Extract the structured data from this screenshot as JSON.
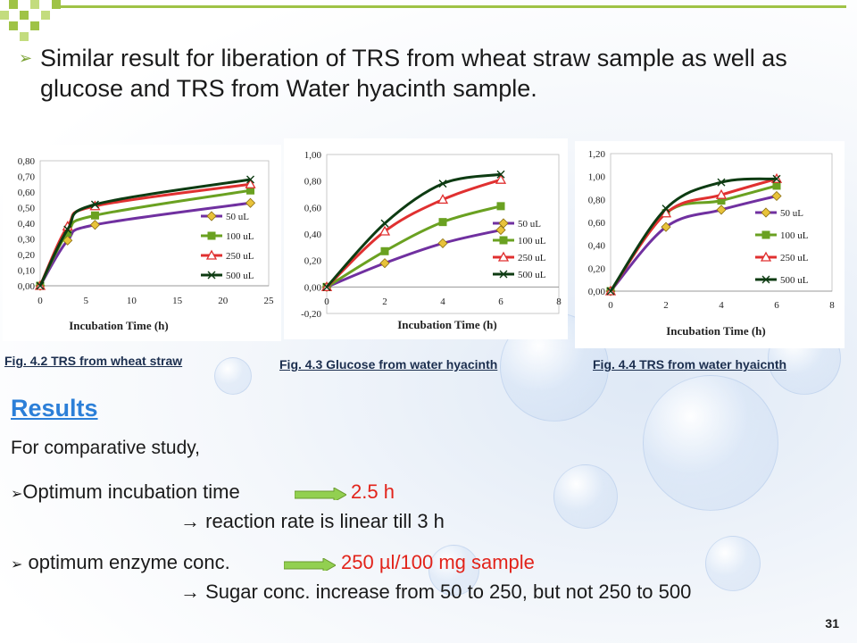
{
  "slide": {
    "title": "Similar result for liberation of TRS from wheat straw sample as well as glucose and TRS from Water hyacinth sample.",
    "captions": [
      "Fig. 4.2 TRS from wheat straw",
      "Fig. 4.3 Glucose from water hyacinth",
      "Fig. 4.4 TRS from water hyaicnth"
    ],
    "results_heading": "Results",
    "intro": "For comparative study,",
    "point1_label": "Optimum incubation time",
    "point1_value": "2.5 h",
    "point1_note": "→ reaction rate is linear till 3 h",
    "point2_label": "optimum enzyme conc.",
    "point2_value": "250 µl/100 mg sample",
    "point2_note": "→ Sugar conc. increase from 50 to 250, but not 250 to 500",
    "page_number": "31",
    "colors": {
      "accent": "#9fc346",
      "heading": "#2c7fd8",
      "highlight": "#e2231a",
      "arrow": "#92d050"
    }
  },
  "chart_data": [
    {
      "type": "line",
      "xlabel": "Incubation Time (h)",
      "ylabel": "",
      "xlim": [
        0,
        25
      ],
      "ylim": [
        0,
        0.8
      ],
      "xticks": [
        "0",
        "5",
        "10",
        "15",
        "20",
        "25"
      ],
      "yticks": [
        "0,00",
        "0,10",
        "0,20",
        "0,30",
        "0,40",
        "0,50",
        "0,60",
        "0,70",
        "0,80"
      ],
      "x": [
        0,
        3,
        6,
        23
      ],
      "series": [
        {
          "name": "50 uL",
          "values": [
            0,
            0.29,
            0.39,
            0.53
          ],
          "color": "#7030a0",
          "marker": "diamond"
        },
        {
          "name": "100 uL",
          "values": [
            0,
            0.34,
            0.45,
            0.61
          ],
          "color": "#6aa121",
          "marker": "square"
        },
        {
          "name": "250 uL",
          "values": [
            0,
            0.38,
            0.51,
            0.65
          ],
          "color": "#e03030",
          "marker": "triangle"
        },
        {
          "name": "500 uL",
          "values": [
            0,
            0.36,
            0.52,
            0.68
          ],
          "color": "#0d3b12",
          "marker": "x"
        }
      ],
      "legend": "right"
    },
    {
      "type": "line",
      "xlabel": "Incubation Time (h)",
      "ylabel": "",
      "xlim": [
        0,
        8
      ],
      "ylim": [
        -0.2,
        1.0
      ],
      "xticks": [
        "0",
        "2",
        "4",
        "6",
        "8"
      ],
      "yticks": [
        "-0,20",
        "0,00",
        "0,20",
        "0,40",
        "0,60",
        "0,80",
        "1,00"
      ],
      "x": [
        0,
        2,
        4,
        6
      ],
      "series": [
        {
          "name": "50 uL",
          "values": [
            0,
            0.18,
            0.33,
            0.43
          ],
          "color": "#7030a0",
          "marker": "diamond"
        },
        {
          "name": "100 uL",
          "values": [
            0,
            0.27,
            0.49,
            0.61
          ],
          "color": "#6aa121",
          "marker": "square"
        },
        {
          "name": "250 uL",
          "values": [
            0,
            0.42,
            0.66,
            0.81
          ],
          "color": "#e03030",
          "marker": "triangle"
        },
        {
          "name": "500 uL",
          "values": [
            0,
            0.48,
            0.78,
            0.85
          ],
          "color": "#0d3b12",
          "marker": "x"
        }
      ],
      "legend": "right"
    },
    {
      "type": "line",
      "xlabel": "Incubation Time (h)",
      "ylabel": "",
      "xlim": [
        0,
        8
      ],
      "ylim": [
        0,
        1.2
      ],
      "xticks": [
        "0",
        "2",
        "4",
        "6",
        "8"
      ],
      "yticks": [
        "0,00",
        "0,20",
        "0,40",
        "0,60",
        "0,80",
        "1,00",
        "1,20"
      ],
      "x": [
        0,
        2,
        4,
        6
      ],
      "series": [
        {
          "name": "50 uL",
          "values": [
            0,
            0.56,
            0.71,
            0.83
          ],
          "color": "#7030a0",
          "marker": "diamond"
        },
        {
          "name": "100 uL",
          "values": [
            0,
            0.68,
            0.79,
            0.92
          ],
          "color": "#6aa121",
          "marker": "square"
        },
        {
          "name": "250 uL",
          "values": [
            0,
            0.68,
            0.84,
            0.98
          ],
          "color": "#e03030",
          "marker": "triangle"
        },
        {
          "name": "500 uL",
          "values": [
            0,
            0.72,
            0.95,
            0.98
          ],
          "color": "#0d3b12",
          "marker": "x"
        }
      ],
      "legend": "right"
    }
  ]
}
